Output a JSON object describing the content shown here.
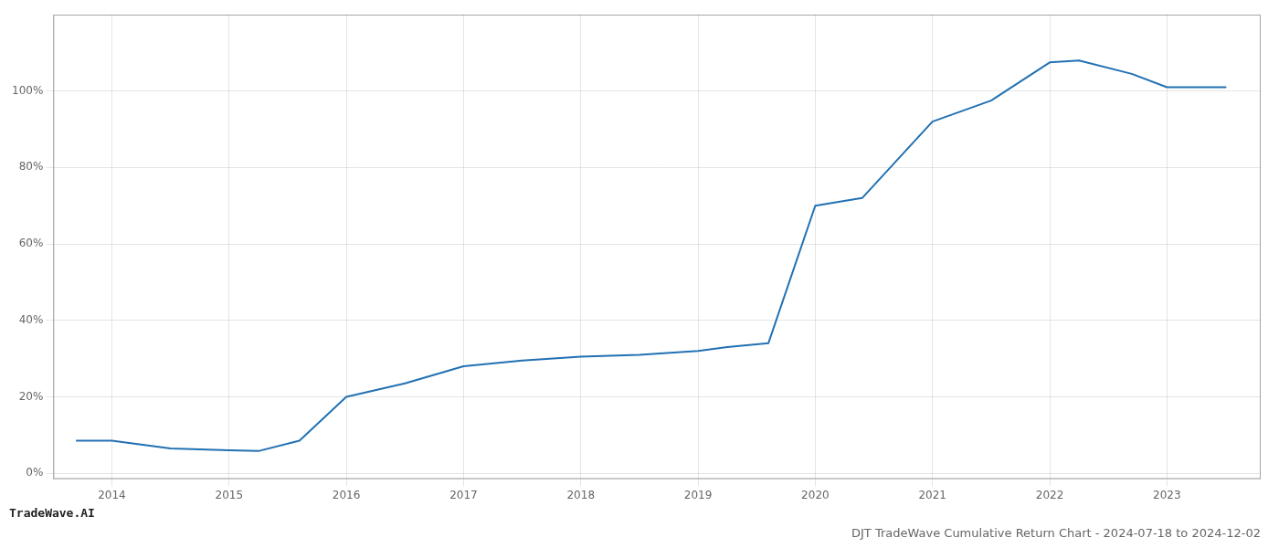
{
  "chart_data": {
    "type": "line",
    "title": "DJT TradeWave Cumulative Return Chart - 2024-07-18 to 2024-12-02",
    "annotations": [
      "TradeWave.AI"
    ],
    "x": [
      2013.7,
      2014.0,
      2014.5,
      2015.0,
      2015.25,
      2015.6,
      2016.0,
      2016.5,
      2017.0,
      2017.5,
      2018.0,
      2018.5,
      2019.0,
      2019.25,
      2019.6,
      2020.0,
      2020.4,
      2021.0,
      2021.5,
      2022.0,
      2022.25,
      2022.7,
      2023.0,
      2023.5
    ],
    "values": [
      0.085,
      0.085,
      0.065,
      0.06,
      0.058,
      0.085,
      0.2,
      0.235,
      0.28,
      0.295,
      0.305,
      0.31,
      0.32,
      0.33,
      0.34,
      0.7,
      0.72,
      0.92,
      0.975,
      1.075,
      1.08,
      1.045,
      1.01,
      1.01
    ],
    "color": "#2271b3",
    "xlim": [
      2013.5,
      2023.8
    ],
    "xticks": [
      2014,
      2015,
      2016,
      2017,
      2018,
      2019,
      2020,
      2021,
      2022,
      2023
    ],
    "ylim": [
      -0.015,
      1.2
    ],
    "yticks": [
      {
        "value": 0.0,
        "label": "0%"
      },
      {
        "value": 0.2,
        "label": "20%"
      },
      {
        "value": 0.4,
        "label": "40%"
      },
      {
        "value": 0.6,
        "label": "60%"
      },
      {
        "value": 0.8,
        "label": "80%"
      },
      {
        "value": 1.0,
        "label": "100%"
      }
    ],
    "grid": true
  }
}
